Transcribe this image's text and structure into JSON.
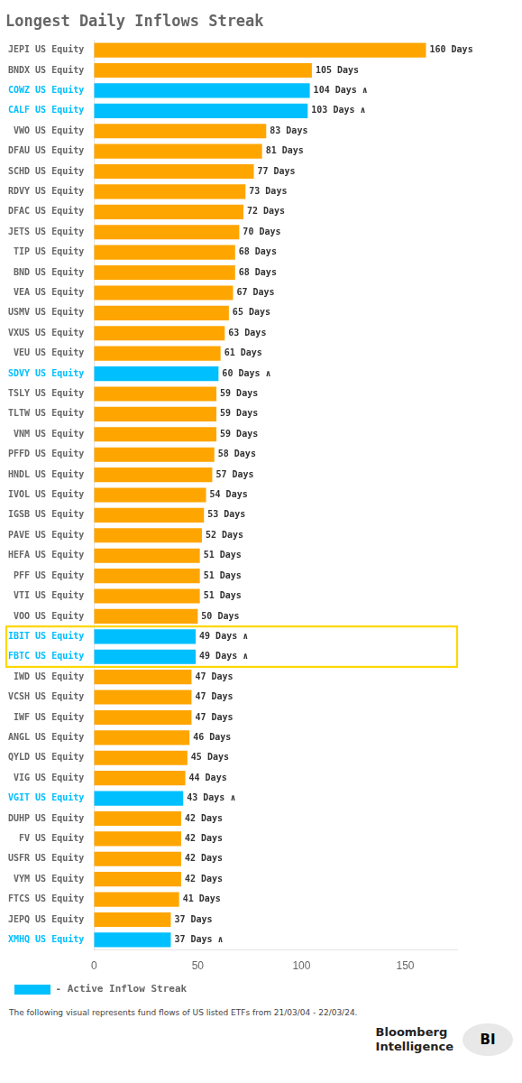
{
  "chart_data": {
    "type": "bar",
    "orientation": "horizontal",
    "title": "Longest Daily Inflows Streak",
    "categories": [
      "JEPI US Equity",
      "BNDX US Equity",
      "COWZ US Equity",
      "CALF US Equity",
      "VWO US Equity",
      "DFAU US Equity",
      "SCHD US Equity",
      "RDVY US Equity",
      "DFAC US Equity",
      "JETS US Equity",
      "TIP US Equity",
      "BND US Equity",
      "VEA US Equity",
      "USMV US Equity",
      "VXUS US Equity",
      "VEU US Equity",
      "SDVY US Equity",
      "TSLY US Equity",
      "TLTW US Equity",
      "VNM US Equity",
      "PFFD US Equity",
      "HNDL US Equity",
      "IVOL US Equity",
      "IGSB US Equity",
      "PAVE US Equity",
      "HEFA US Equity",
      "PFF US Equity",
      "VTI US Equity",
      "VOO US Equity",
      "IBIT US Equity",
      "FBTC US Equity",
      "IWD US Equity",
      "VCSH US Equity",
      "IWF US Equity",
      "ANGL US Equity",
      "QYLD US Equity",
      "VIG US Equity",
      "VGIT US Equity",
      "DUHP US Equity",
      "FV US Equity",
      "USFR US Equity",
      "VYM US Equity",
      "FTCS US Equity",
      "JEPQ US Equity",
      "XMHQ US Equity"
    ],
    "series": [
      {
        "color": "#FFA500",
        "values": [
          160,
          105,
          null,
          null,
          83,
          81,
          77,
          73,
          72,
          70,
          68,
          68,
          67,
          65,
          63,
          61,
          null,
          59,
          59,
          59,
          58,
          57,
          54,
          53,
          52,
          51,
          51,
          51,
          50,
          null,
          null,
          47,
          47,
          47,
          46,
          45,
          44,
          null,
          42,
          42,
          42,
          42,
          41,
          37,
          null
        ],
        "value_labels": [
          "160 Days",
          "105 Days",
          null,
          null,
          "83 Days",
          "81 Days",
          "77 Days",
          "73 Days",
          "72 Days",
          "70 Days",
          "68 Days",
          "68 Days",
          "67 Days",
          "65 Days",
          "63 Days",
          "61 Days",
          null,
          "59 Days",
          "59 Days",
          "59 Days",
          "58 Days",
          "57 Days",
          "54 Days",
          "53 Days",
          "52 Days",
          "51 Days",
          "51 Days",
          "51 Days",
          "50 Days",
          null,
          null,
          "47 Days",
          "47 Days",
          "47 Days",
          "46 Days",
          "45 Days",
          "44 Days",
          null,
          "42 Days",
          "42 Days",
          "42 Days",
          "42 Days",
          "41 Days",
          "37 Days",
          null
        ]
      },
      {
        "name": "- Active Inflow Streak",
        "color": "#00BFFF",
        "values": [
          null,
          null,
          104,
          103,
          null,
          null,
          null,
          null,
          null,
          null,
          null,
          null,
          null,
          null,
          null,
          null,
          60,
          null,
          null,
          null,
          null,
          null,
          null,
          null,
          null,
          null,
          null,
          null,
          null,
          49,
          49,
          null,
          null,
          null,
          null,
          null,
          null,
          43,
          null,
          null,
          null,
          null,
          null,
          null,
          37
        ],
        "value_labels": [
          null,
          null,
          "104 Days ∧",
          "103 Days ∧",
          null,
          null,
          null,
          null,
          null,
          null,
          null,
          null,
          null,
          null,
          null,
          null,
          "60 Days ∧",
          null,
          null,
          null,
          null,
          null,
          null,
          null,
          null,
          null,
          null,
          null,
          null,
          "49 Days ∧",
          "49 Days ∧",
          null,
          null,
          null,
          null,
          null,
          null,
          "43 Days ∧",
          null,
          null,
          null,
          null,
          null,
          null,
          "37 Days ∧"
        ]
      }
    ],
    "xlim": [
      0,
      175
    ],
    "xticks": [
      0,
      50,
      100,
      150
    ],
    "grid": false,
    "legend": "bottom",
    "data_labels": true,
    "annotations": [
      {
        "text": "The following visual represents fund flows of US listed ETFs from 21/03/04 - 22/03/24."
      },
      {
        "text": "Bloomberg"
      },
      {
        "text": "Intelligence"
      },
      {
        "text": "BI"
      },
      {
        "categories": [
          "IBIT US Equity",
          "FBTC US Equity"
        ],
        "color": "#FFD700"
      }
    ]
  }
}
